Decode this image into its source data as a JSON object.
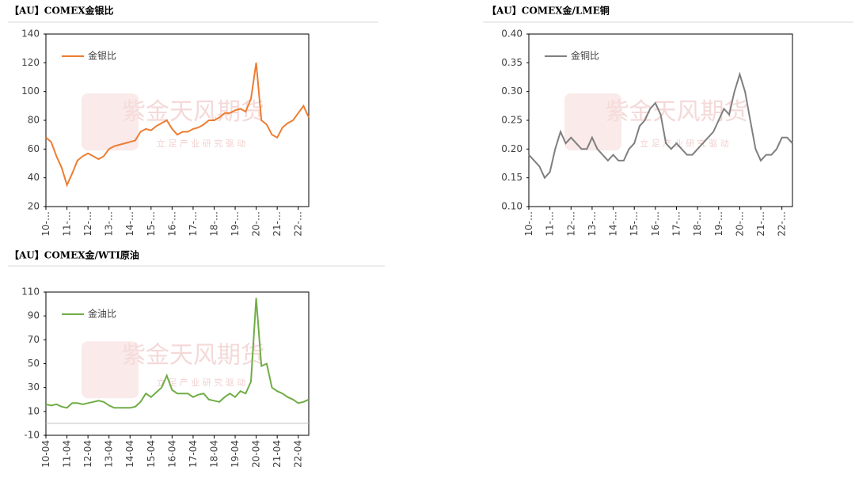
{
  "chart_data": [
    {
      "type": "line",
      "title": "【AU】COMEX金银比",
      "categories": [
        "10-…",
        null,
        null,
        null,
        "11-…",
        null,
        null,
        null,
        "12-…",
        null,
        null,
        null,
        "13-…",
        null,
        null,
        null,
        "14-…",
        null,
        null,
        null,
        "15-…",
        null,
        null,
        null,
        "16-…",
        null,
        null,
        null,
        "17-…",
        null,
        null,
        null,
        "18-…",
        null,
        null,
        null,
        "19-…",
        null,
        null,
        null,
        "20-…",
        null,
        null,
        null,
        "21-…",
        null,
        null,
        null,
        "22-…",
        null,
        null
      ],
      "series": [
        {
          "name": "金银比",
          "color": "#ed7d31",
          "values": [
            68,
            65,
            55,
            47,
            35,
            43,
            52,
            55,
            57,
            55,
            53,
            55,
            60,
            62,
            63,
            64,
            65,
            66,
            72,
            74,
            73,
            76,
            78,
            80,
            74,
            70,
            72,
            72,
            74,
            75,
            77,
            80,
            80,
            82,
            85,
            85,
            87,
            88,
            86,
            95,
            120,
            80,
            77,
            70,
            68,
            75,
            78,
            80,
            85,
            90,
            82
          ]
        }
      ],
      "ylim": [
        20,
        140
      ],
      "yticks": [
        20,
        40,
        60,
        80,
        100,
        120,
        140
      ]
    },
    {
      "type": "line",
      "title": "【AU】COMEX金/LME铜",
      "categories": [
        "10-…",
        null,
        null,
        null,
        "11-…",
        null,
        null,
        null,
        "12-…",
        null,
        null,
        null,
        "13-…",
        null,
        null,
        null,
        "14-…",
        null,
        null,
        null,
        "15-…",
        null,
        null,
        null,
        "16-…",
        null,
        null,
        null,
        "17-…",
        null,
        null,
        null,
        "18-…",
        null,
        null,
        null,
        "19-…",
        null,
        null,
        null,
        "20-…",
        null,
        null,
        null,
        "21-…",
        null,
        null,
        null,
        "22-…",
        null,
        null
      ],
      "series": [
        {
          "name": "金铜比",
          "color": "#7f7f7f",
          "values": [
            0.19,
            0.18,
            0.17,
            0.15,
            0.16,
            0.2,
            0.23,
            0.21,
            0.22,
            0.21,
            0.2,
            0.2,
            0.22,
            0.2,
            0.19,
            0.18,
            0.19,
            0.18,
            0.18,
            0.2,
            0.21,
            0.24,
            0.25,
            0.27,
            0.28,
            0.26,
            0.21,
            0.2,
            0.21,
            0.2,
            0.19,
            0.19,
            0.2,
            0.21,
            0.22,
            0.23,
            0.25,
            0.27,
            0.26,
            0.3,
            0.33,
            0.3,
            0.25,
            0.2,
            0.18,
            0.19,
            0.19,
            0.2,
            0.22,
            0.22,
            0.21
          ]
        }
      ],
      "ylim": [
        0.1,
        0.4
      ],
      "yticks": [
        {
          "value": 0.1,
          "label": "0.10"
        },
        0.15,
        {
          "value": 0.2,
          "label": "0.20"
        },
        0.25,
        {
          "value": 0.3,
          "label": "0.30"
        },
        0.35,
        {
          "value": 0.4,
          "label": "0.40"
        }
      ]
    },
    {
      "type": "line",
      "title": "【AU】COMEX金/WTI原油",
      "categories": [
        "10-04",
        null,
        null,
        null,
        "11-04",
        null,
        null,
        null,
        "12-04",
        null,
        null,
        null,
        "13-04",
        null,
        null,
        null,
        "14-04",
        null,
        null,
        null,
        "15-04",
        null,
        null,
        null,
        "16-04",
        null,
        null,
        null,
        "17-04",
        null,
        null,
        null,
        "18-04",
        null,
        null,
        null,
        "19-04",
        null,
        null,
        null,
        "20-04",
        null,
        null,
        null,
        "21-04",
        null,
        null,
        null,
        "22-04",
        null,
        null
      ],
      "series": [
        {
          "name": "金油比",
          "color": "#70ad47",
          "values": [
            16,
            15,
            16,
            14,
            13,
            17,
            17,
            16,
            17,
            18,
            19,
            18,
            15,
            13,
            13,
            13,
            13,
            14,
            18,
            25,
            22,
            26,
            30,
            40,
            28,
            25,
            25,
            25,
            22,
            24,
            25,
            20,
            19,
            18,
            22,
            25,
            22,
            27,
            25,
            35,
            105,
            48,
            50,
            30,
            27,
            25,
            22,
            20,
            17,
            18,
            20
          ]
        }
      ],
      "ylim": [
        -10,
        110
      ],
      "yticks": [
        -10,
        10,
        30,
        50,
        70,
        90,
        110
      ]
    }
  ],
  "watermark": {
    "name": "紫金天风期货",
    "slogan": "立 足 产 业 研 究 驱 动"
  }
}
